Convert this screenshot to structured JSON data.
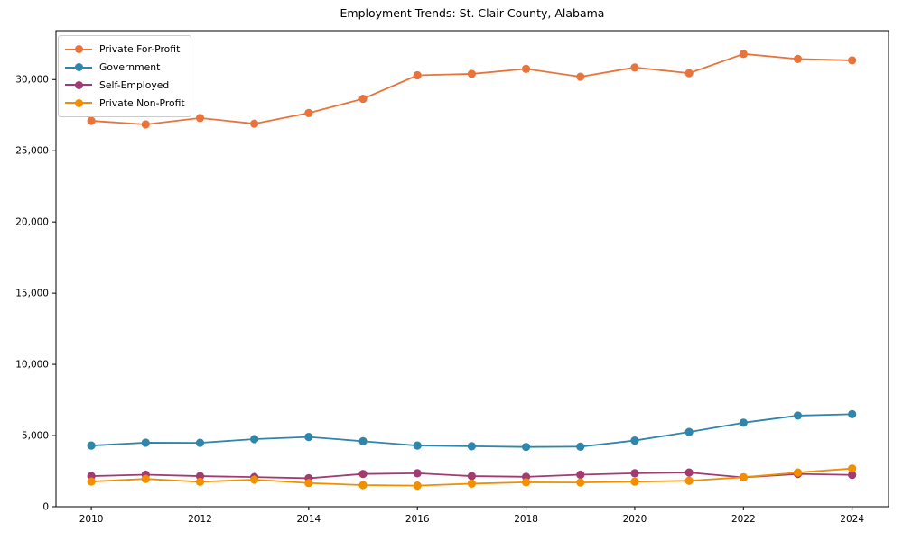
{
  "chart_data": {
    "type": "line",
    "title": "Employment Trends: St. Clair County, Alabama",
    "xlabel": "",
    "ylabel": "",
    "grid": false,
    "legend_position": "upper left",
    "background": "#ffffff",
    "axis_color": "#000000",
    "x": [
      2010,
      2011,
      2012,
      2013,
      2014,
      2015,
      2016,
      2017,
      2018,
      2019,
      2020,
      2021,
      2022,
      2023,
      2024
    ],
    "series": [
      {
        "name": "Private For-Profit",
        "color": "#e8743b",
        "values": [
          27100,
          26850,
          27300,
          26900,
          27650,
          28650,
          30300,
          30400,
          30750,
          30200,
          30850,
          30450,
          31800,
          31450,
          31350
        ]
      },
      {
        "name": "Government",
        "color": "#2e86ab",
        "values": [
          4300,
          4500,
          4490,
          4750,
          4900,
          4600,
          4300,
          4250,
          4200,
          4220,
          4650,
          5250,
          5900,
          6400,
          6500
        ]
      },
      {
        "name": "Self-Employed",
        "color": "#a23b72",
        "values": [
          2150,
          2250,
          2150,
          2080,
          2000,
          2300,
          2350,
          2150,
          2100,
          2250,
          2350,
          2400,
          2060,
          2300,
          2230
        ]
      },
      {
        "name": "Private Non-Profit",
        "color": "#f18f01",
        "values": [
          1770,
          1950,
          1750,
          1900,
          1660,
          1520,
          1480,
          1620,
          1720,
          1700,
          1760,
          1820,
          2070,
          2400,
          2680
        ]
      }
    ],
    "xticks": [
      2010,
      2012,
      2014,
      2016,
      2018,
      2020,
      2022,
      2024
    ],
    "yticks": {
      "values": [
        0,
        5000,
        10000,
        15000,
        20000,
        25000,
        30000
      ],
      "labels": [
        "0",
        "5,000",
        "10,000",
        "15,000",
        "20,000",
        "25,000",
        "30,000"
      ]
    },
    "xlim": [
      2009.35,
      2024.67
    ],
    "ylim": [
      0,
      33435
    ]
  }
}
